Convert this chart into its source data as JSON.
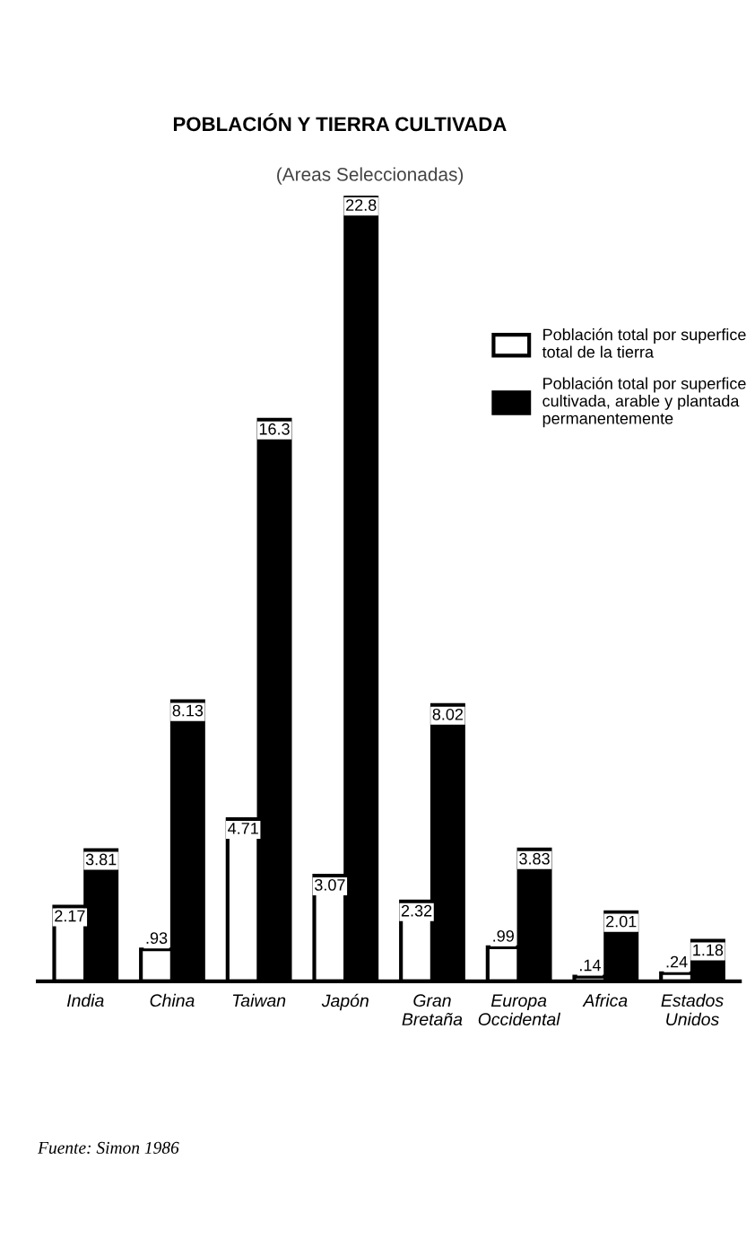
{
  "chart_data": {
    "type": "bar",
    "title": "POBLACIÓN Y TIERRA CULTIVADA",
    "subtitle": "(Areas Seleccionadas)",
    "categories": [
      "India",
      "China",
      "Taiwan",
      "Japón",
      "Gran\nBretaña",
      "Europa\nOccidental",
      "Africa",
      "Estados\nUnidos"
    ],
    "series": [
      {
        "name": "Población total por superfice\ntotal de la tierra",
        "color": "#ffffff",
        "values": [
          2.17,
          0.93,
          4.71,
          3.07,
          2.32,
          0.99,
          0.14,
          0.24
        ],
        "value_labels": [
          "2.17",
          ".93",
          "4.71",
          "3.07",
          "2.32",
          ".99",
          ".14",
          ".24"
        ]
      },
      {
        "name": "Población total por superfice\ncultivada, arable y plantada\npermanentemente",
        "color": "#000000",
        "values": [
          3.81,
          8.13,
          16.3,
          22.8,
          8.02,
          3.83,
          2.01,
          1.18
        ],
        "value_labels": [
          "3.81",
          "8.13",
          "16.3",
          "22.8",
          "8.02",
          "3.83",
          "2.01",
          "1.18"
        ]
      }
    ],
    "legend": "top right",
    "annotations": [
      "Fuente: Simon 1986"
    ]
  }
}
